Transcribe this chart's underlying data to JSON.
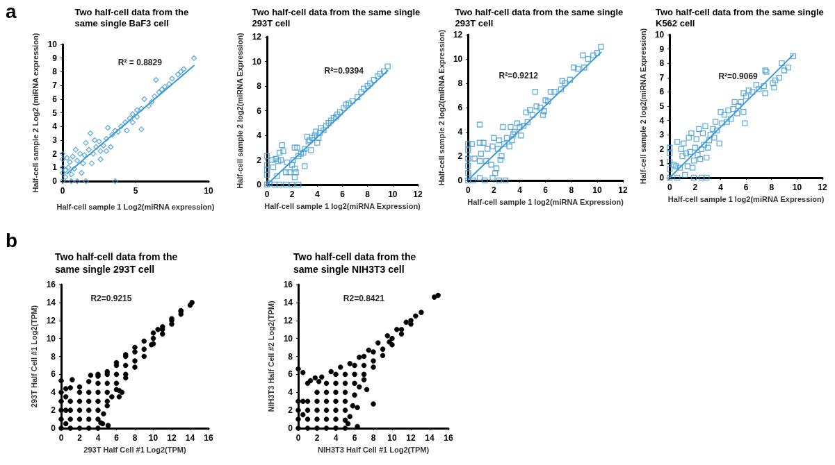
{
  "chart_data": [
    {
      "type": "scatter",
      "title": "Two half-cell data from the same single BaF3 cell",
      "xlabel": "Half-cell sample 1 Log2(miRNA expression)",
      "ylabel": "Half-cell sample 2 Log2 (miRNA expression)",
      "annotations": [
        "a",
        "R² = 0.8829"
      ],
      "xlim": [
        0,
        10
      ],
      "xticks": [
        0,
        5,
        10
      ],
      "ylim": [
        0,
        10
      ],
      "yticks": [
        0,
        1,
        2,
        3,
        4,
        5,
        6,
        7,
        8,
        9,
        10
      ],
      "grid": false,
      "marker": "diamond",
      "series": [
        {
          "color": "#3d9ad6",
          "x": [
            9.0,
            8.3,
            8.1,
            7.9,
            7.5,
            7.3,
            7.0,
            6.8,
            6.6,
            6.4,
            6.3,
            6.1,
            5.9,
            5.6,
            5.4,
            5.4,
            5.1,
            5.1,
            4.8,
            4.6,
            4.4,
            4.3,
            4.0,
            3.8,
            3.6,
            3.4,
            3.1,
            3.0,
            3.0,
            2.8,
            2.6,
            2.5,
            2.3,
            2.2,
            2.1,
            2.0,
            1.9,
            1.8,
            1.6,
            1.5,
            1.4,
            1.3,
            1.2,
            1.0,
            0.9,
            0.8,
            0.7,
            0.6,
            0.5,
            0.3,
            0.2,
            0,
            0,
            0,
            0,
            0,
            0.6,
            1.0,
            1.6,
            3.6,
            0.2,
            0.4,
            2.6,
            3.3,
            4.8
          ],
          "values": [
            9.0,
            8.2,
            8.0,
            7.8,
            7.5,
            7.1,
            6.9,
            6.7,
            6.5,
            7.4,
            6.2,
            5.8,
            5.5,
            6.0,
            5.3,
            3.8,
            5.2,
            4.7,
            4.9,
            4.6,
            3.7,
            4.3,
            4.0,
            3.6,
            3.7,
            3.4,
            3.9,
            3.1,
            2.2,
            2.6,
            1.6,
            2.9,
            2.5,
            3.0,
            2.0,
            1.3,
            3.5,
            2.3,
            2.8,
            1.9,
            1.3,
            0.6,
            2.0,
            1.5,
            2.3,
            0.9,
            1.8,
            0.5,
            1.4,
            1.7,
            0.8,
            2.0,
            1.6,
            1.0,
            0.6,
            0,
            0,
            0,
            0,
            0,
            0.3,
            1.0,
            2.2,
            2.5,
            4.3
          ]
        },
        {
          "type": "line",
          "marker": "none",
          "color": "#3d9ad6",
          "x": [
            0.3,
            9.0
          ],
          "values": [
            0.55,
            8.45
          ]
        }
      ]
    },
    {
      "type": "scatter",
      "title": "Two half-cell data from the same single 293T cell",
      "xlabel": "Half-cell sample 1 log2(miRNA Expression)",
      "ylabel": "Half-cell sample 2 log2(miRNA Expression)",
      "annotations": [
        "R²=0.9394"
      ],
      "xlim": [
        0,
        12
      ],
      "xticks": [
        0,
        2,
        4,
        6,
        8,
        10,
        12
      ],
      "ylim": [
        0,
        12
      ],
      "yticks": [
        0,
        2,
        4,
        6,
        8,
        10,
        12
      ],
      "grid": false,
      "marker": "square",
      "series": [
        {
          "color": "#3d9ad6",
          "x": [
            9.6,
            9.3,
            9.0,
            8.8,
            8.5,
            8.2,
            8.0,
            7.7,
            7.5,
            7.2,
            6.8,
            6.5,
            6.3,
            6.1,
            5.8,
            5.6,
            5.5,
            5.3,
            5.1,
            4.9,
            4.7,
            4.5,
            4.3,
            4.2,
            4.1,
            4.0,
            3.9,
            3.8,
            3.6,
            3.4,
            3.3,
            3.2,
            3.0,
            2.9,
            2.7,
            2.5,
            2.4,
            2.2,
            2.1,
            2.0,
            2.2,
            2.3,
            2.2,
            1.8,
            1.6,
            1.5,
            1.3,
            1.2,
            1.1,
            1.0,
            0.9,
            0.8,
            0.7,
            0.5,
            0.4,
            0,
            0,
            0,
            0,
            0,
            0.6,
            1.0,
            1.5,
            2.0,
            2.5,
            0.2,
            3.0,
            3.5
          ],
          "values": [
            9.6,
            9.2,
            9.0,
            8.8,
            8.5,
            8.2,
            8.0,
            7.8,
            7.5,
            7.1,
            6.8,
            6.6,
            6.5,
            6.2,
            5.9,
            5.7,
            5.5,
            5.4,
            5.2,
            5.0,
            4.8,
            4.4,
            4.6,
            4.2,
            3.8,
            3.4,
            4.3,
            4.0,
            3.8,
            3.6,
            3.5,
            3.9,
            2.9,
            2.6,
            2.5,
            2.3,
            3.0,
            3.0,
            2.0,
            1.6,
            1.3,
            1.0,
            0.6,
            1.0,
            1.8,
            1.0,
            2.7,
            3.2,
            2.0,
            2.6,
            1.9,
            0.7,
            2.1,
            1.4,
            2.0,
            2.3,
            1.6,
            1.2,
            0.8,
            0,
            0,
            0,
            0,
            0,
            0,
            0.1,
            1.5,
            2.8
          ]
        },
        {
          "type": "line",
          "marker": "none",
          "color": "#3d9ad6",
          "x": [
            0,
            9.6
          ],
          "values": [
            0,
            9.25
          ]
        }
      ]
    },
    {
      "type": "scatter",
      "title": "Two half-cell data from the same single 293T cell",
      "xlabel": "Half-cell sample 1 log2(miRNA Expression)",
      "ylabel": "Half-cell sample 2 log2(miRNA Expression)",
      "annotations": [
        "R²=0.9212"
      ],
      "xlim": [
        0,
        12
      ],
      "xticks": [
        0,
        2,
        4,
        6,
        8,
        10,
        12
      ],
      "ylim": [
        0,
        12
      ],
      "yticks": [
        0,
        2,
        4,
        6,
        8,
        10,
        12
      ],
      "grid": false,
      "marker": "square",
      "series": [
        {
          "color": "#3d9ad6",
          "x": [
            10.3,
            10.0,
            9.7,
            9.3,
            9.0,
            8.9,
            8.5,
            8.2,
            7.9,
            7.5,
            7.3,
            7.2,
            6.7,
            6.4,
            6.2,
            6.0,
            5.9,
            5.6,
            5.3,
            5.2,
            5.0,
            4.8,
            4.6,
            4.5,
            4.3,
            4.1,
            4.0,
            3.8,
            3.6,
            3.5,
            3.4,
            3.3,
            3.2,
            3.0,
            2.8,
            2.7,
            2.6,
            2.5,
            2.4,
            2.3,
            2.2,
            2.1,
            2.0,
            1.9,
            1.8,
            1.5,
            1.4,
            1.2,
            1.0,
            0.9,
            0.9,
            0.9,
            0.5,
            0.3,
            0,
            0,
            0,
            0,
            0,
            0,
            0.4,
            0.9,
            1.3,
            1.9,
            2.4,
            2.9,
            5.8
          ],
          "values": [
            11.0,
            10.5,
            10.3,
            10.0,
            9.3,
            10.3,
            9.2,
            9.3,
            8.3,
            8.0,
            8.2,
            7.5,
            7.3,
            7.3,
            6.5,
            6.6,
            5.7,
            6.0,
            6.1,
            7.3,
            5.4,
            5.8,
            4.8,
            5.6,
            4.5,
            3.7,
            4.4,
            4.7,
            4.0,
            3.8,
            3.3,
            4.4,
            2.8,
            3.5,
            3.0,
            4.4,
            2.0,
            1.7,
            3.3,
            2.6,
            1.0,
            0.6,
            3.5,
            2.8,
            1.3,
            2.6,
            1.6,
            3.1,
            2.2,
            3.1,
            1.6,
            4.6,
            1.8,
            3.0,
            3.0,
            2.5,
            1.8,
            1.2,
            0.6,
            0,
            0,
            0.2,
            0,
            0.2,
            0,
            0,
            5.4
          ]
        },
        {
          "type": "line",
          "marker": "none",
          "color": "#3d9ad6",
          "x": [
            0,
            10.3
          ],
          "values": [
            0.05,
            10.55
          ]
        }
      ]
    },
    {
      "type": "scatter",
      "title": "Two half-cell data from the same single K562 cell",
      "xlabel": "Half-cell sample 1 log2(miRNA Expression)",
      "ylabel": "Half-cell sample 2 log2(miRNA Expression)",
      "annotations": [
        "R²=0.9069"
      ],
      "xlim": [
        0,
        12
      ],
      "xticks": [
        0,
        2,
        4,
        6,
        8,
        10,
        12
      ],
      "ylim": [
        0,
        10
      ],
      "yticks": [
        0,
        1,
        2,
        3,
        4,
        5,
        6,
        7,
        8,
        9,
        10
      ],
      "grid": false,
      "marker": "square",
      "series": [
        {
          "color": "#3d9ad6",
          "x": [
            9.7,
            9.3,
            9.0,
            8.8,
            8.6,
            8.3,
            8.1,
            8.2,
            7.6,
            7.5,
            7.5,
            7.4,
            7.0,
            6.8,
            6.5,
            6.2,
            6.0,
            5.8,
            5.8,
            5.6,
            5.4,
            5.3,
            5.1,
            5.0,
            4.8,
            4.6,
            4.5,
            4.3,
            4.1,
            4.0,
            3.9,
            3.7,
            3.6,
            3.5,
            3.4,
            3.2,
            3.1,
            3.0,
            2.9,
            2.8,
            2.7,
            2.6,
            2.5,
            2.4,
            2.3,
            2.2,
            2.1,
            2.0,
            1.9,
            1.8,
            1.7,
            1.6,
            1.5,
            1.4,
            1.3,
            1.1,
            1.0,
            0.9,
            0.8,
            0.6,
            0.5,
            0.3,
            0,
            0,
            0,
            0,
            0,
            0.6,
            1.2,
            1.9,
            2.5,
            2.9,
            5.9
          ],
          "values": [
            8.5,
            7.7,
            7.5,
            8.0,
            7.0,
            6.8,
            6.6,
            6.3,
            7.4,
            7.5,
            5.9,
            6.4,
            6.2,
            6.5,
            6.0,
            6.1,
            5.7,
            5.9,
            4.6,
            5.3,
            5.0,
            4.5,
            5.3,
            4.8,
            4.1,
            4.7,
            3.9,
            4.4,
            3.8,
            4.6,
            2.4,
            3.3,
            3.9,
            2.8,
            3.4,
            3.0,
            2.6,
            2.1,
            1.4,
            3.6,
            2.3,
            3.1,
            2.0,
            1.3,
            3.4,
            1.6,
            2.7,
            2.1,
            1.2,
            0.7,
            3.1,
            1.8,
            2.8,
            0.8,
            1.7,
            2.4,
            1.5,
            2.0,
            0.7,
            2.5,
            0.8,
            0.9,
            2.1,
            1.7,
            1.1,
            0.6,
            0,
            0,
            0.2,
            0,
            0,
            0,
            3.8
          ]
        },
        {
          "type": "line",
          "marker": "none",
          "color": "#3d9ad6",
          "x": [
            0,
            9.7
          ],
          "values": [
            0,
            8.6
          ]
        }
      ]
    },
    {
      "type": "scatter",
      "title": "Two half-cell data from the same single 293T cell",
      "xlabel": "293T Half Cell #1 Log2(TPM)",
      "ylabel": "293T Half Cell #1 Log2(TPM)",
      "annotations": [
        "b",
        "R2=0.9215"
      ],
      "xlim": [
        0,
        16
      ],
      "xticks": [
        0,
        2,
        4,
        6,
        8,
        10,
        12,
        14,
        16
      ],
      "ylim": [
        0,
        16
      ],
      "yticks": [
        0,
        2,
        4,
        6,
        8,
        10,
        12,
        14,
        16
      ],
      "grid": false,
      "marker": "circle",
      "series": [
        {
          "color": "#000000",
          "x": [
            0,
            0.5,
            1,
            2,
            3,
            4,
            5,
            6,
            7,
            8,
            9,
            10,
            11,
            12,
            13,
            14.2,
            14,
            13,
            12,
            11,
            10,
            9,
            8,
            7,
            6,
            5.5,
            5,
            4.6,
            4.3,
            4,
            0,
            1,
            2,
            3,
            1,
            1,
            1,
            2,
            2,
            2,
            2,
            3,
            3,
            3,
            3,
            4,
            4,
            4,
            4,
            4,
            5,
            5,
            5,
            5,
            6,
            6,
            6,
            7,
            7,
            7,
            8,
            8,
            9,
            10,
            11,
            12,
            13,
            0.5,
            0.5,
            0.5,
            0,
            0,
            0,
            0,
            3.2,
            4,
            1.2,
            6.3,
            6.6,
            6.3,
            5.1,
            4.5,
            9.8,
            10.5
          ],
          "values": [
            5.3,
            4.4,
            4.5,
            4.6,
            5.2,
            5.8,
            6.3,
            7.3,
            8.2,
            9.0,
            9.7,
            10.6,
            11.3,
            12.2,
            13.1,
            14.0,
            13.7,
            12.7,
            11.6,
            10.5,
            9.4,
            8.0,
            6.8,
            5.6,
            4.3,
            3.5,
            2.5,
            1.6,
            0.6,
            0,
            0,
            0,
            0,
            0,
            1,
            2,
            3,
            1,
            2,
            3,
            4,
            1,
            2,
            3,
            4,
            1,
            2,
            3,
            4,
            5,
            3,
            4,
            5,
            6,
            5,
            6,
            7,
            6,
            7,
            8,
            7.5,
            8.5,
            8.8,
            10,
            11,
            12,
            13,
            0.5,
            2,
            3.5,
            1,
            2,
            3,
            4,
            5.9,
            6.0,
            5.4,
            4.2,
            4.0,
            3.5,
            0.3,
            0.5,
            9.3,
            11.0
          ]
        }
      ]
    },
    {
      "type": "scatter",
      "title": "Two half-cell data from the same single NIH3T3 cell",
      "xlabel": "NIH3T3 Half Cell #1 Log2(TPM)",
      "ylabel": "NIH3T3 Half Cell #2 Log2(TPM)",
      "annotations": [
        "R2=0.8421"
      ],
      "xlim": [
        0,
        16
      ],
      "xticks": [
        0,
        2,
        4,
        6,
        8,
        10,
        12,
        14,
        16
      ],
      "ylim": [
        0,
        16
      ],
      "yticks": [
        0,
        2,
        4,
        6,
        8,
        10,
        12,
        14,
        16
      ],
      "grid": false,
      "marker": "circle",
      "series": [
        {
          "color": "#000000",
          "x": [
            0,
            0.5,
            1,
            1.8,
            2.5,
            3.5,
            4.5,
            5.5,
            6.5,
            7.5,
            8.5,
            9.5,
            10.5,
            11.5,
            12.5,
            13.1,
            14.5,
            14.9,
            12,
            11,
            10,
            9,
            8,
            7,
            6.5,
            6,
            5.8,
            5.5,
            6.3,
            5.0,
            5.3,
            8.0,
            7.3,
            6.3,
            0,
            1,
            2,
            3,
            4,
            5,
            0,
            0,
            0,
            0.5,
            0.5,
            1,
            1,
            1,
            2,
            2,
            2,
            2,
            3,
            3,
            3,
            3,
            3,
            4,
            4,
            4,
            4,
            4,
            4,
            5,
            5,
            5,
            5,
            5,
            6,
            6,
            6,
            7,
            7,
            7,
            8,
            8,
            9,
            10,
            11,
            12,
            1.3,
            2.2,
            9.7
          ],
          "values": [
            6.6,
            6.2,
            5.0,
            5.6,
            5.7,
            6.3,
            6.8,
            7.2,
            7.9,
            8.7,
            9.5,
            10.3,
            11.0,
            11.8,
            12.5,
            12.9,
            14.6,
            14.8,
            11.6,
            10.5,
            9.3,
            8.1,
            6.8,
            5.4,
            4.6,
            3.7,
            2.5,
            1.3,
            0.2,
            0.9,
            0.5,
            2.7,
            4.3,
            2.3,
            0,
            0,
            0,
            0,
            0,
            0,
            1,
            2,
            3,
            1.5,
            3,
            1,
            2,
            3,
            1,
            2,
            3,
            4,
            1,
            2,
            3,
            4,
            5,
            1,
            2,
            3,
            4,
            5,
            6,
            2,
            3,
            4,
            5,
            6,
            5,
            6,
            7,
            6,
            7,
            8,
            7.5,
            8.5,
            8.8,
            10,
            11,
            12,
            5.3,
            5.2,
            9.6
          ]
        }
      ]
    }
  ]
}
